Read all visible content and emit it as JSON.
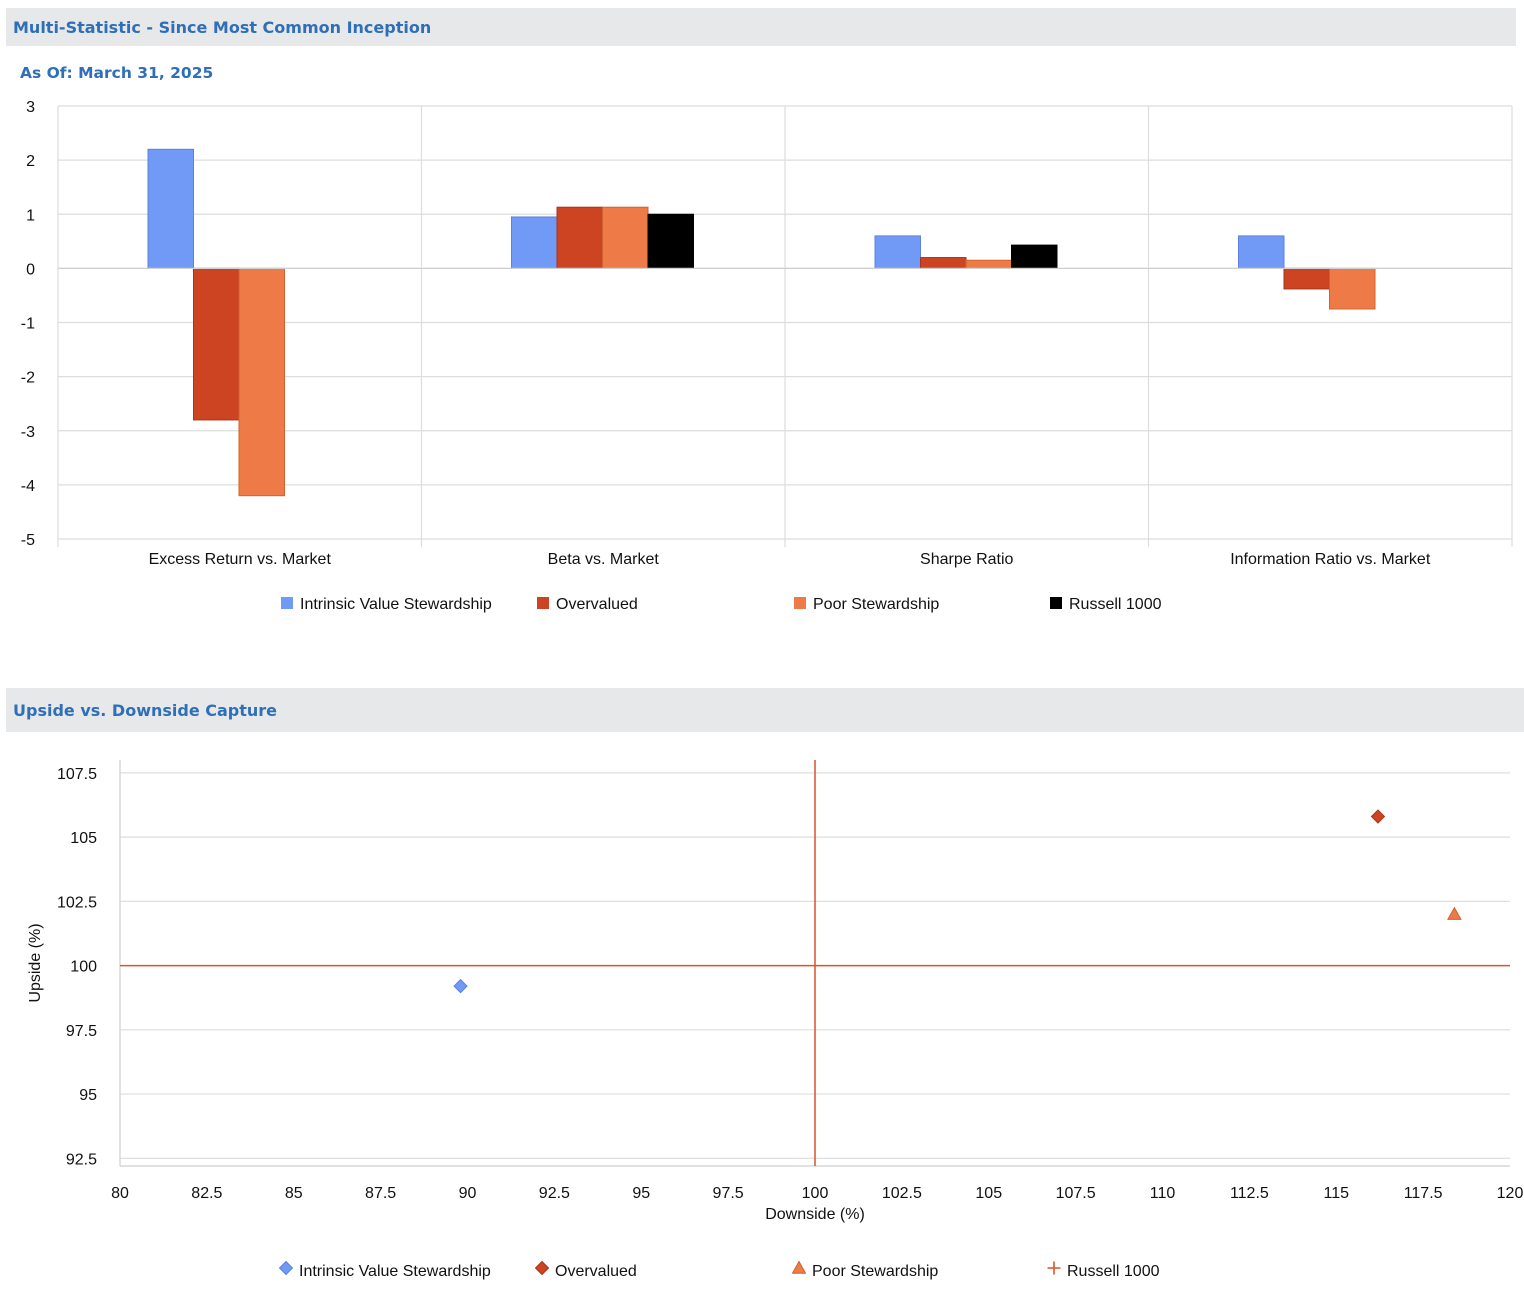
{
  "header1": {
    "title": "Multi-Statistic - Since Most Common Inception"
  },
  "asof": "As Of: March 31, 2025",
  "header2": {
    "title": "Upside vs. Downside Capture"
  },
  "colors": {
    "intrinsic": "#7199f6",
    "overvalued": "#cc4422",
    "poor": "#ee7b47",
    "russell": "#000000",
    "grid": "#dddddd",
    "refline": "#d9542b",
    "header_bg": "#e7e8ea",
    "header_text": "#2e6fb7"
  },
  "chart_data": [
    {
      "type": "bar",
      "title": "",
      "categories": [
        "Excess Return vs. Market",
        "Beta vs. Market",
        "Sharpe Ratio",
        "Information Ratio vs. Market"
      ],
      "series": [
        {
          "name": "Intrinsic Value Stewardship",
          "values": [
            2.2,
            0.95,
            0.6,
            0.6
          ]
        },
        {
          "name": "Overvalued",
          "values": [
            -2.8,
            1.13,
            0.2,
            -0.38
          ]
        },
        {
          "name": "Poor Stewardship",
          "values": [
            -4.2,
            1.13,
            0.15,
            -0.75
          ]
        },
        {
          "name": "Russell 1000",
          "values": [
            0,
            1.0,
            0.43,
            0
          ]
        }
      ],
      "yticks": [
        "3",
        "2",
        "1",
        "0",
        "-1",
        "-2",
        "-3",
        "-4",
        "-5"
      ],
      "ylim": [
        -5,
        3
      ],
      "grid": true,
      "legend": "bottom"
    },
    {
      "type": "scatter",
      "title": "",
      "xlabel": "Downside (%)",
      "ylabel": "Upside (%)",
      "xlim": [
        80,
        120
      ],
      "ylim": [
        92.2,
        108
      ],
      "xticks": [
        "80",
        "82.5",
        "85",
        "87.5",
        "90",
        "92.5",
        "95",
        "97.5",
        "100",
        "102.5",
        "105",
        "107.5",
        "110",
        "112.5",
        "115",
        "117.5",
        "120"
      ],
      "yticks": [
        "107.5",
        "105",
        "102.5",
        "100",
        "97.5",
        "95",
        "92.5"
      ],
      "reference_lines": {
        "x": 100,
        "y": 100
      },
      "series": [
        {
          "name": "Intrinsic Value Stewardship",
          "marker": "diamond",
          "points": [
            {
              "x": 89.8,
              "y": 99.2
            }
          ]
        },
        {
          "name": "Overvalued",
          "marker": "diamond",
          "points": [
            {
              "x": 116.2,
              "y": 105.8
            }
          ]
        },
        {
          "name": "Poor Stewardship",
          "marker": "triangle",
          "points": [
            {
              "x": 118.4,
              "y": 102.0
            }
          ]
        },
        {
          "name": "Russell 1000",
          "marker": "plus",
          "points": []
        }
      ],
      "grid": true,
      "legend": "bottom"
    }
  ]
}
